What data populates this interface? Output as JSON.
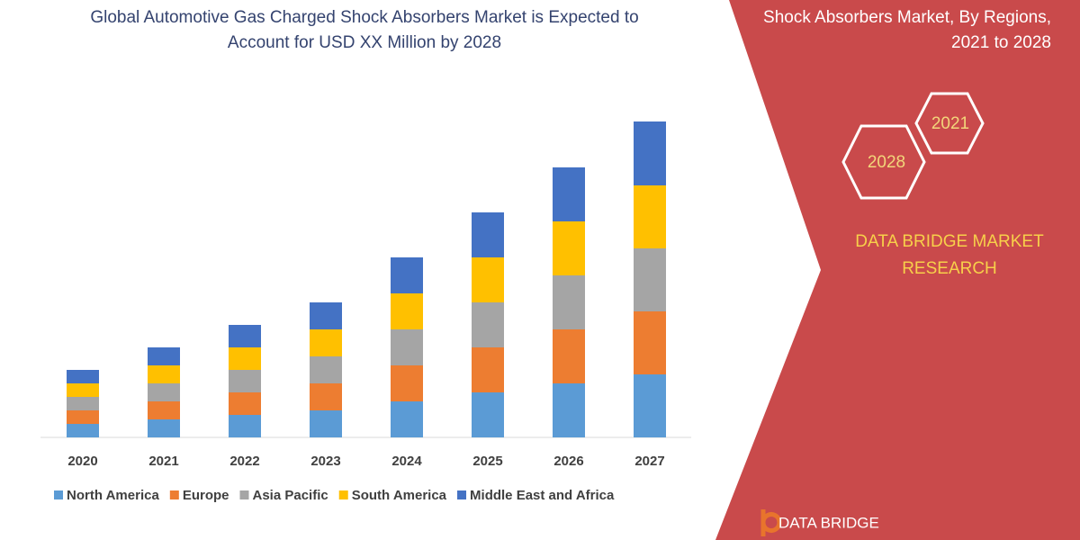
{
  "chart_data": {
    "type": "stacked-bar",
    "title": "Global Automotive Gas Charged Shock Absorbers Market is Expected to Account for USD XX Million by 2028",
    "categories": [
      "2020",
      "2021",
      "2022",
      "2023",
      "2024",
      "2025",
      "2026",
      "2027"
    ],
    "series": [
      {
        "name": "North America",
        "color": "#5b9bd5",
        "values": [
          15,
          20,
          25,
          30,
          40,
          50,
          60,
          70
        ]
      },
      {
        "name": "Europe",
        "color": "#ed7d31",
        "values": [
          15,
          20,
          25,
          30,
          40,
          50,
          60,
          70
        ]
      },
      {
        "name": "Asia Pacific",
        "color": "#a5a5a5",
        "values": [
          15,
          20,
          25,
          30,
          40,
          50,
          60,
          70
        ]
      },
      {
        "name": "South America",
        "color": "#ffc000",
        "values": [
          15,
          20,
          25,
          30,
          40,
          50,
          60,
          70
        ]
      },
      {
        "name": "Middle East and Africa",
        "color": "#4472c4",
        "values": [
          15,
          20,
          25,
          30,
          40,
          50,
          60,
          71
        ]
      }
    ],
    "legend": "bottom"
  },
  "panel": {
    "heading": "Shock Absorbers Market, By Regions, 2021 to 2028",
    "hexagons": [
      "2021",
      "2028"
    ],
    "brand": "DATA BRIDGE MARKET RESEARCH",
    "logo": "DATA BRIDGE"
  }
}
